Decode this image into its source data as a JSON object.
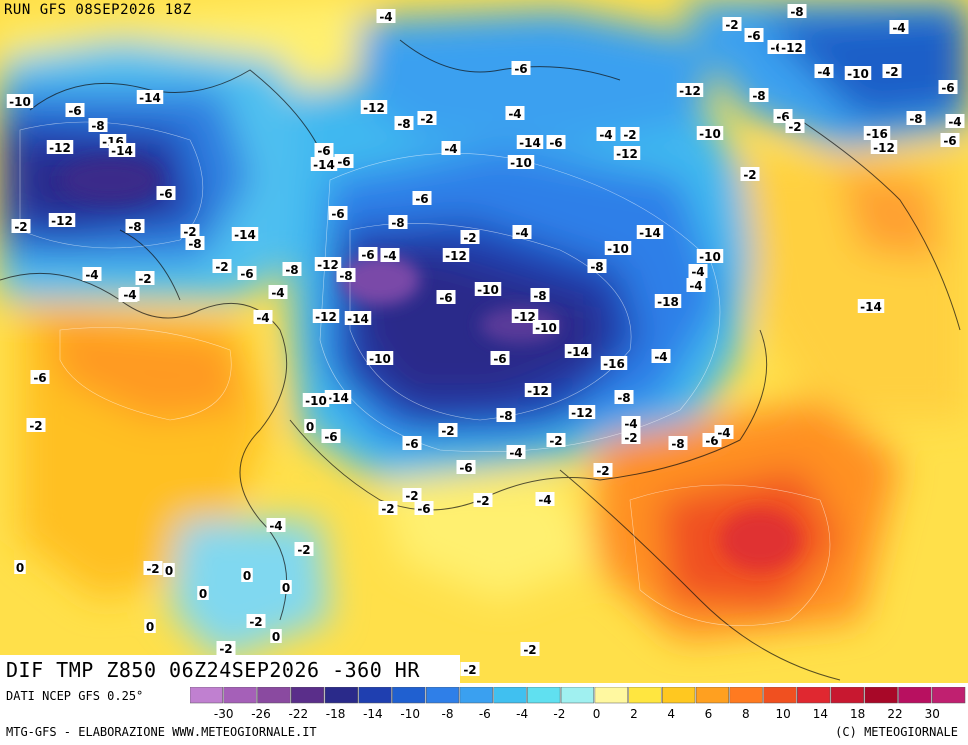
{
  "header": {
    "run_label": "RUN GFS 08SEP2026 18Z"
  },
  "map": {
    "title": "DIF TMP Z850 06Z24SEP2026 -360 HR",
    "source": "DATI NCEP GFS 0.25°",
    "credit_left": "MTG-GFS - ELABORAZIONE WWW.METEOGIORNALE.IT",
    "credit_right": "(C) METEOGIORNALE"
  },
  "legend": {
    "ticks": [
      "-30",
      "-26",
      "-22",
      "-18",
      "-14",
      "-10",
      "-8",
      "-6",
      "-4",
      "-2",
      "0",
      "2",
      "4",
      "6",
      "8",
      "10",
      "14",
      "18",
      "22",
      "30"
    ],
    "colors": [
      "#c080d0",
      "#a560b8",
      "#8a4aa0",
      "#5a2e8a",
      "#2a2a8a",
      "#1f3fb0",
      "#2060d0",
      "#2f7fe8",
      "#3aa0f0",
      "#40c0f0",
      "#60e0f0",
      "#a0f0f0",
      "#fff8a0",
      "#ffe640",
      "#ffc820",
      "#ffa020",
      "#ff7a20",
      "#f05020",
      "#e02830",
      "#c81830",
      "#a80828",
      "#b81060",
      "#c02070"
    ]
  },
  "contour_labels": [
    "-4",
    "-8",
    "-2",
    "-4",
    "-6",
    "-6",
    "-12",
    "-4",
    "-10",
    "-2",
    "-6",
    "-8",
    "-4",
    "-10",
    "-6",
    "-8",
    "-12",
    "-16",
    "-14",
    "-6",
    "-8",
    "-14",
    "-2",
    "-12",
    "-2",
    "-14",
    "-8",
    "-4",
    "-2",
    "-6",
    "-8",
    "-14",
    "-6",
    "-6",
    "-12",
    "-8",
    "-2",
    "-4",
    "-6",
    "-4",
    "-10",
    "-14",
    "-6",
    "-4",
    "-2",
    "-12",
    "-12",
    "-10",
    "-8",
    "-6",
    "-2",
    "-16",
    "-12",
    "-6",
    "-2",
    "-6",
    "-8",
    "-6",
    "-2",
    "-4",
    "-12",
    "-10",
    "-14",
    "-10",
    "-4",
    "-4",
    "-8",
    "-18",
    "-14",
    "-12",
    "-8",
    "-6",
    "-4",
    "-6",
    "-10",
    "-8",
    "-12",
    "-10",
    "-14",
    "-16",
    "-4",
    "-14",
    "-12",
    "-10",
    "-6",
    "-12",
    "-8",
    "-12",
    "-8",
    "-2",
    "-6",
    "-14",
    "-10",
    "-6",
    "-4",
    "-2",
    "-8",
    "-6",
    "-4",
    "-2",
    "-2",
    "-4",
    "-6",
    "-2",
    "-2",
    "-6",
    "-2",
    "-4",
    "-4",
    "-2",
    "-4",
    "-2",
    "-2",
    "-4",
    "-6",
    "-2",
    "0",
    "0",
    "0",
    "0",
    "0",
    "0",
    "0",
    "0",
    "-2",
    "-2",
    "-2",
    "-2",
    "-2",
    "-4",
    "-6"
  ]
}
